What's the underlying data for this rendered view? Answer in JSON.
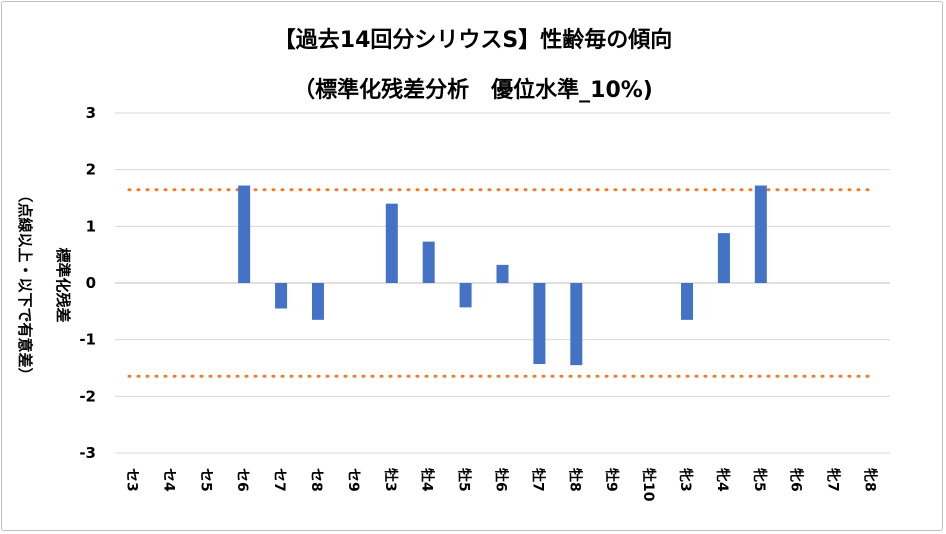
{
  "chart_data": {
    "type": "bar",
    "title": "【過去14回分シリウスS】性齢毎の傾向",
    "subtitle": "（標準化残差分析　優位水準_10%)",
    "ylabel_line1": "標準化残差",
    "ylabel_line2": "（点線以上・以下で有意差）",
    "ylim": [
      -3,
      3
    ],
    "yticks": [
      -3,
      -2,
      -1,
      0,
      1,
      2,
      3
    ],
    "categories": [
      "セ3",
      "セ4",
      "セ5",
      "セ6",
      "セ7",
      "セ8",
      "セ9",
      "牡3",
      "牡4",
      "牡5",
      "牡6",
      "牡7",
      "牡8",
      "牡9",
      "牡10",
      "牝3",
      "牝4",
      "牝5",
      "牝6",
      "牝7",
      "牝8"
    ],
    "values": [
      0,
      0,
      0,
      1.72,
      -0.45,
      -0.65,
      0,
      1.4,
      0.73,
      -0.43,
      0.32,
      -1.43,
      -1.45,
      0,
      0,
      -0.65,
      0.88,
      1.72,
      0,
      0,
      0
    ],
    "threshold": 1.645,
    "colors": {
      "bar": "#4472c4",
      "threshold": "#ed7d31",
      "grid": "#d9d9d9"
    },
    "grid": true,
    "legend": "none"
  }
}
